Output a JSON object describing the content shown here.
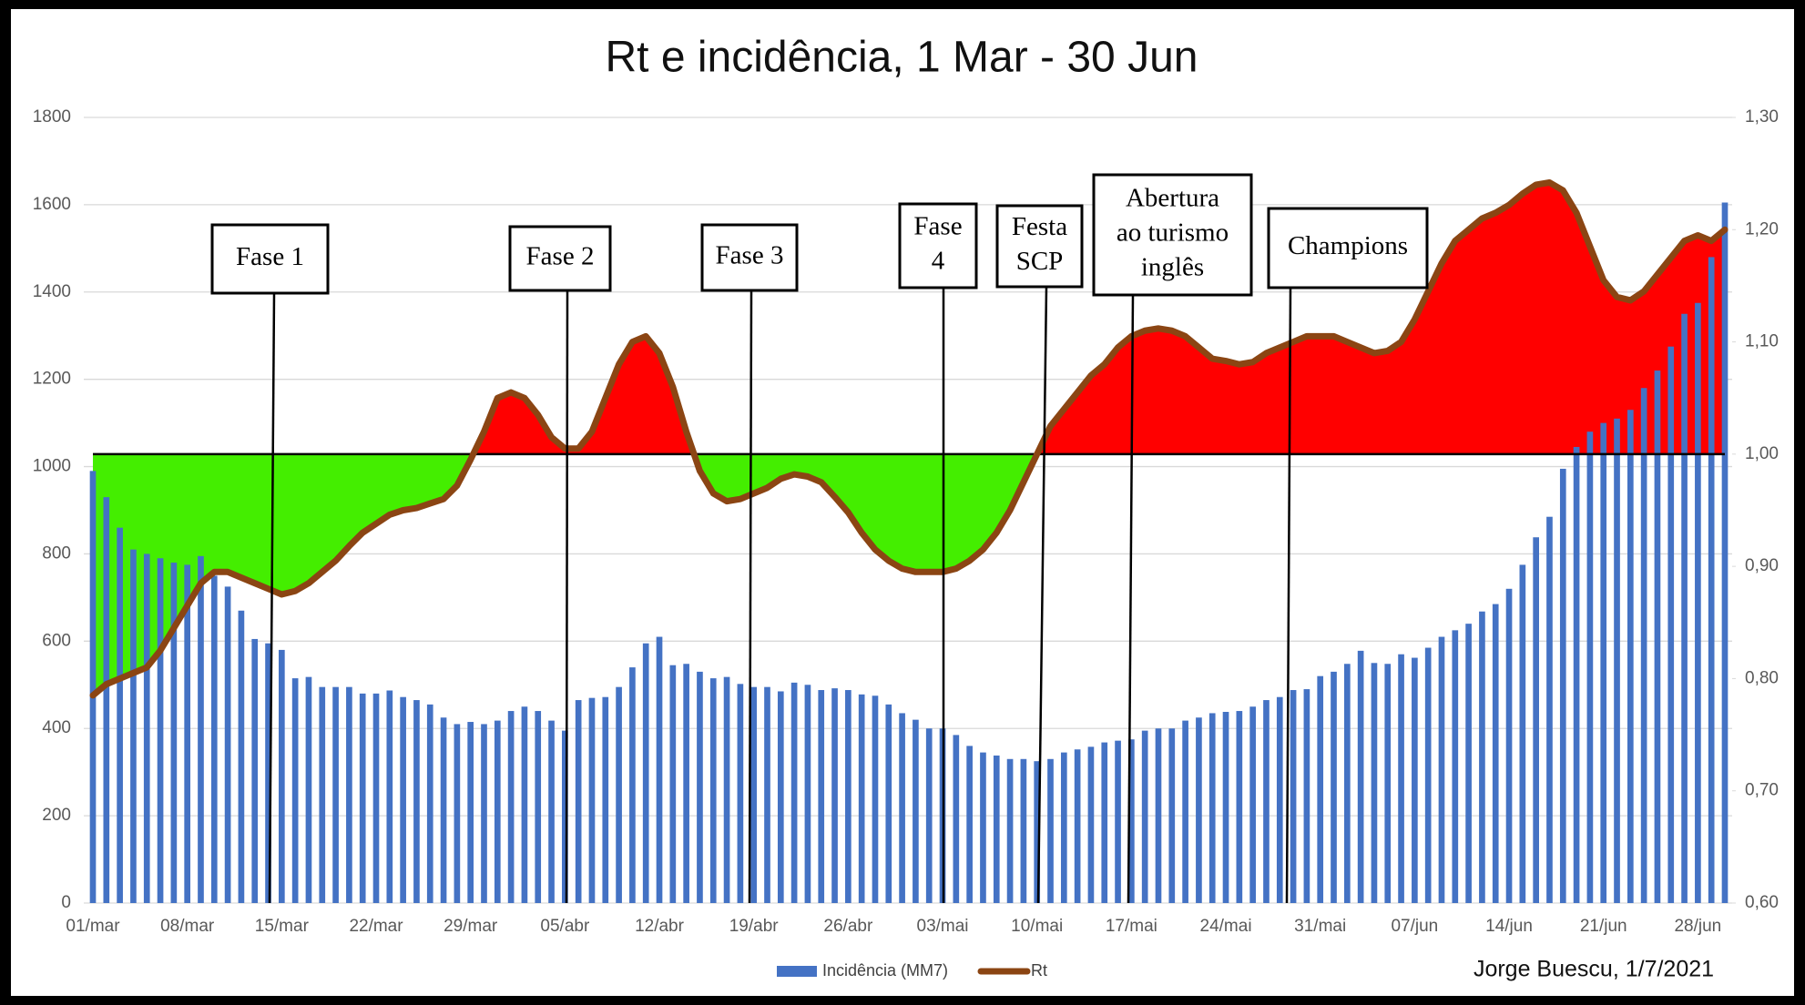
{
  "chart_data": {
    "type": "bar_line_area",
    "title": "Rt e incidência, 1 Mar - 30 Jun",
    "credit": "Jorge Buescu, 1/7/2021",
    "categories": [
      "01/mar",
      null,
      null,
      null,
      null,
      null,
      null,
      "08/mar",
      null,
      null,
      null,
      null,
      null,
      null,
      "15/mar",
      null,
      null,
      null,
      null,
      null,
      null,
      "22/mar",
      null,
      null,
      null,
      null,
      null,
      null,
      "29/mar",
      null,
      null,
      null,
      null,
      null,
      null,
      "05/abr",
      null,
      null,
      null,
      null,
      null,
      null,
      "12/abr",
      null,
      null,
      null,
      null,
      null,
      null,
      "19/abr",
      null,
      null,
      null,
      null,
      null,
      null,
      "26/abr",
      null,
      null,
      null,
      null,
      null,
      null,
      "03/mai",
      null,
      null,
      null,
      null,
      null,
      null,
      "10/mai",
      null,
      null,
      null,
      null,
      null,
      null,
      "17/mai",
      null,
      null,
      null,
      null,
      null,
      null,
      "24/mai",
      null,
      null,
      null,
      null,
      null,
      null,
      "31/mai",
      null,
      null,
      null,
      null,
      null,
      null,
      "07/jun",
      null,
      null,
      null,
      null,
      null,
      null,
      "14/jun",
      null,
      null,
      null,
      null,
      null,
      null,
      "21/jun",
      null,
      null,
      null,
      null,
      null,
      null,
      "28/jun",
      null,
      null
    ],
    "series": [
      {
        "name": "Incidência (MM7)",
        "color": "#4472c4",
        "values": [
          990,
          930,
          860,
          810,
          800,
          790,
          780,
          775,
          795,
          750,
          725,
          670,
          605,
          595,
          580,
          515,
          518,
          495,
          495,
          495,
          480,
          480,
          487,
          472,
          465,
          455,
          425,
          410,
          415,
          410,
          418,
          440,
          450,
          440,
          418,
          395,
          465,
          470,
          472,
          495,
          540,
          595,
          610,
          545,
          548,
          530,
          515,
          518,
          502,
          495,
          495,
          485,
          505,
          500,
          488,
          492,
          488,
          478,
          475,
          455,
          435,
          420,
          400,
          400,
          385,
          360,
          345,
          338,
          330,
          330,
          325,
          330,
          345,
          352,
          358,
          368,
          372,
          375,
          395,
          400,
          400,
          418,
          425,
          435,
          438,
          440,
          450,
          465,
          472,
          488,
          490,
          520,
          530,
          548,
          578,
          550,
          548,
          570,
          562,
          585,
          610,
          625,
          640,
          668,
          685,
          720,
          775,
          838,
          885,
          995,
          1045,
          1080,
          1100,
          1110,
          1130,
          1180,
          1220,
          1275,
          1350,
          1375,
          1480,
          1605
        ]
      },
      {
        "name": "Rt",
        "color": "#8b4513",
        "axis": "y2",
        "values": [
          0.785,
          0.795,
          0.8,
          0.805,
          0.81,
          0.825,
          0.845,
          0.865,
          0.885,
          0.895,
          0.895,
          0.89,
          0.885,
          0.88,
          0.875,
          0.878,
          0.885,
          0.895,
          0.905,
          0.918,
          0.93,
          0.938,
          0.946,
          0.95,
          0.952,
          0.956,
          0.96,
          0.972,
          0.995,
          1.02,
          1.05,
          1.055,
          1.05,
          1.035,
          1.015,
          1.005,
          1.005,
          1.02,
          1.05,
          1.08,
          1.1,
          1.105,
          1.09,
          1.06,
          1.02,
          0.985,
          0.965,
          0.958,
          0.96,
          0.965,
          0.97,
          0.978,
          0.982,
          0.98,
          0.975,
          0.962,
          0.948,
          0.93,
          0.915,
          0.905,
          0.898,
          0.895,
          0.895,
          0.895,
          0.898,
          0.905,
          0.915,
          0.93,
          0.95,
          0.975,
          1.0,
          1.025,
          1.04,
          1.055,
          1.07,
          1.08,
          1.095,
          1.105,
          1.11,
          1.112,
          1.11,
          1.105,
          1.095,
          1.085,
          1.083,
          1.08,
          1.082,
          1.09,
          1.095,
          1.1,
          1.105,
          1.105,
          1.105,
          1.1,
          1.095,
          1.09,
          1.092,
          1.1,
          1.12,
          1.145,
          1.17,
          1.19,
          1.2,
          1.21,
          1.215,
          1.222,
          1.232,
          1.24,
          1.242,
          1.235,
          1.215,
          1.185,
          1.155,
          1.14,
          1.137,
          1.145,
          1.16,
          1.175,
          1.19,
          1.195,
          1.19,
          1.2
        ]
      }
    ],
    "ylim": [
      0,
      1800
    ],
    "yticks": [
      0,
      200,
      400,
      600,
      800,
      1000,
      1200,
      1400,
      1600,
      1800
    ],
    "y2lim": [
      0.6,
      1.3
    ],
    "y2ticks": [
      {
        "value": 0.6,
        "label": "0,60"
      },
      {
        "value": 0.7,
        "label": "0,70"
      },
      {
        "value": 0.8,
        "label": "0,80"
      },
      {
        "value": 0.9,
        "label": "0,90"
      },
      {
        "value": 1.0,
        "label": "1,00"
      },
      {
        "value": 1.1,
        "label": "1,10"
      },
      {
        "value": 1.2,
        "label": "1,20"
      },
      {
        "value": 1.3,
        "label": "1,30"
      }
    ],
    "reference_line": 1.0,
    "above_color": "#ff0000",
    "below_color": "#44ee00",
    "grid": true,
    "legend": "bottom",
    "annotations": [
      {
        "lines": [
          "Fase 1"
        ]
      },
      {
        "lines": [
          "Fase 2"
        ]
      },
      {
        "lines": [
          "Fase 3"
        ]
      },
      {
        "lines": [
          "Fase",
          "4"
        ]
      },
      {
        "lines": [
          "Festa",
          "SCP"
        ]
      },
      {
        "lines": [
          "Abertura",
          "ao turismo",
          "inglês"
        ]
      },
      {
        "lines": [
          "Champions"
        ]
      }
    ]
  }
}
